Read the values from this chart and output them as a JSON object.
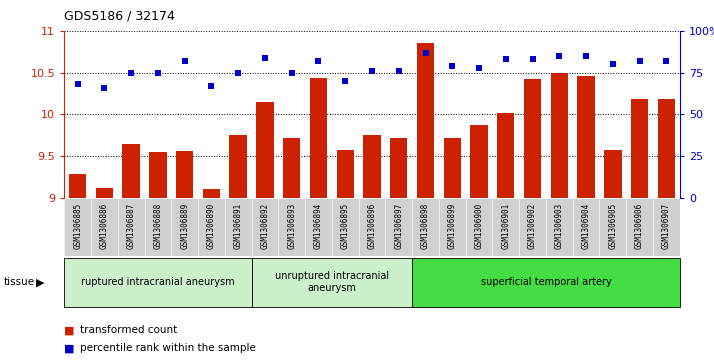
{
  "title": "GDS5186 / 32174",
  "samples": [
    "GSM1306885",
    "GSM1306886",
    "GSM1306887",
    "GSM1306888",
    "GSM1306889",
    "GSM1306890",
    "GSM1306891",
    "GSM1306892",
    "GSM1306893",
    "GSM1306894",
    "GSM1306895",
    "GSM1306896",
    "GSM1306897",
    "GSM1306898",
    "GSM1306899",
    "GSM1306900",
    "GSM1306901",
    "GSM1306902",
    "GSM1306903",
    "GSM1306904",
    "GSM1306905",
    "GSM1306906",
    "GSM1306907"
  ],
  "transformed_count": [
    9.28,
    9.12,
    9.65,
    9.55,
    9.56,
    9.1,
    9.75,
    10.15,
    9.72,
    10.44,
    9.57,
    9.75,
    9.72,
    10.85,
    9.72,
    9.87,
    10.02,
    10.42,
    10.5,
    10.46,
    9.57,
    10.18,
    10.18
  ],
  "percentile_rank": [
    68,
    66,
    75,
    75,
    82,
    67,
    75,
    84,
    75,
    82,
    70,
    76,
    76,
    87,
    79,
    78,
    83,
    83,
    85,
    85,
    80,
    82,
    82
  ],
  "group_data": [
    {
      "label": "ruptured intracranial aneurysm",
      "start": 0,
      "end": 6,
      "color": "#ccf0cc"
    },
    {
      "label": "unruptured intracranial\naneurysm",
      "start": 7,
      "end": 12,
      "color": "#ccf0cc"
    },
    {
      "label": "superficial temporal artery",
      "start": 13,
      "end": 22,
      "color": "#44dd44"
    }
  ],
  "ylim_left": [
    9.0,
    11.0
  ],
  "ylim_right": [
    0,
    100
  ],
  "bar_color": "#CC2200",
  "dot_color": "#0000CC",
  "yticks_left": [
    9.0,
    9.5,
    10.0,
    10.5,
    11.0
  ],
  "yticks_right": [
    0,
    25,
    50,
    75,
    100
  ],
  "xtick_bg": "#d0d0d0"
}
